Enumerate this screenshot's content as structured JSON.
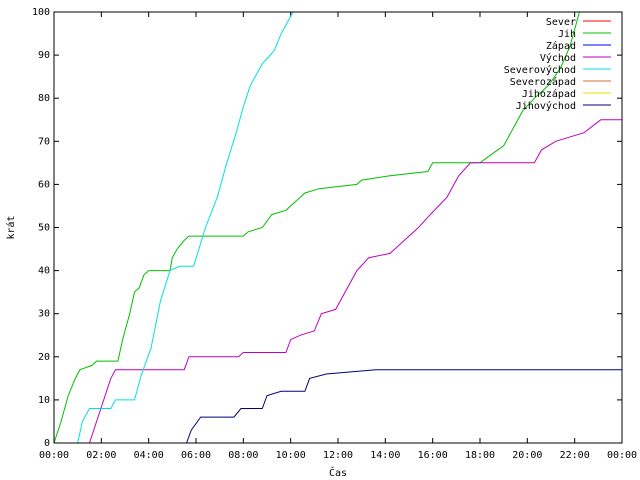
{
  "chart_data": {
    "type": "line",
    "title": "",
    "xlabel": "Čas",
    "ylabel": "krát",
    "xlim": [
      0,
      24
    ],
    "ylim": [
      0,
      100
    ],
    "x_tick_labels": [
      "00:00",
      "02:00",
      "04:00",
      "06:00",
      "08:00",
      "10:00",
      "12:00",
      "14:00",
      "16:00",
      "18:00",
      "20:00",
      "22:00",
      "00:00"
    ],
    "y_tick_labels": [
      "0",
      "10",
      "20",
      "30",
      "40",
      "50",
      "60",
      "70",
      "80",
      "90",
      "100"
    ],
    "grid": false,
    "legend_position": "top-right",
    "series": [
      {
        "name": "Sever",
        "color": "#ff0000",
        "points": []
      },
      {
        "name": "Jih",
        "color": "#00c000",
        "points": [
          [
            0.0,
            0
          ],
          [
            0.3,
            5
          ],
          [
            0.6,
            11
          ],
          [
            0.9,
            15
          ],
          [
            1.1,
            17
          ],
          [
            1.6,
            18
          ],
          [
            1.8,
            19
          ],
          [
            2.7,
            19
          ],
          [
            2.9,
            24
          ],
          [
            3.2,
            30
          ],
          [
            3.4,
            35
          ],
          [
            3.6,
            36
          ],
          [
            3.8,
            39
          ],
          [
            4.0,
            40
          ],
          [
            4.9,
            40
          ],
          [
            5.0,
            43
          ],
          [
            5.2,
            45
          ],
          [
            5.5,
            47
          ],
          [
            5.7,
            48
          ],
          [
            8.0,
            48
          ],
          [
            8.2,
            49
          ],
          [
            8.8,
            50
          ],
          [
            9.2,
            53
          ],
          [
            9.8,
            54
          ],
          [
            10.2,
            56
          ],
          [
            10.6,
            58
          ],
          [
            11.2,
            59
          ],
          [
            12.8,
            60
          ],
          [
            13.0,
            61
          ],
          [
            14.2,
            62
          ],
          [
            15.8,
            63
          ],
          [
            16.0,
            65
          ],
          [
            18.0,
            65
          ],
          [
            18.5,
            67
          ],
          [
            19.0,
            69
          ],
          [
            19.4,
            73
          ],
          [
            19.8,
            77
          ],
          [
            20.3,
            80
          ],
          [
            20.9,
            83
          ],
          [
            21.4,
            87
          ],
          [
            21.8,
            92
          ],
          [
            22.0,
            96
          ],
          [
            22.2,
            100
          ]
        ]
      },
      {
        "name": "Západ",
        "color": "#0000ff",
        "points": []
      },
      {
        "name": "Východ",
        "color": "#c000c0",
        "points": [
          [
            1.5,
            0
          ],
          [
            1.8,
            5
          ],
          [
            2.1,
            10
          ],
          [
            2.4,
            15
          ],
          [
            2.6,
            17
          ],
          [
            5.5,
            17
          ],
          [
            5.7,
            20
          ],
          [
            7.8,
            20
          ],
          [
            8.0,
            21
          ],
          [
            9.8,
            21
          ],
          [
            10.0,
            24
          ],
          [
            10.4,
            25
          ],
          [
            11.0,
            26
          ],
          [
            11.3,
            30
          ],
          [
            11.9,
            31
          ],
          [
            12.3,
            35
          ],
          [
            12.8,
            40
          ],
          [
            13.3,
            43
          ],
          [
            14.2,
            44
          ],
          [
            14.6,
            46
          ],
          [
            15.4,
            50
          ],
          [
            15.9,
            53
          ],
          [
            16.6,
            57
          ],
          [
            17.1,
            62
          ],
          [
            17.6,
            65
          ],
          [
            20.3,
            65
          ],
          [
            20.6,
            68
          ],
          [
            21.2,
            70
          ],
          [
            22.4,
            72
          ],
          [
            23.1,
            75
          ],
          [
            24.0,
            75
          ]
        ]
      },
      {
        "name": "Severovýchod",
        "color": "#00e0e0",
        "points": [
          [
            1.0,
            0
          ],
          [
            1.2,
            5
          ],
          [
            1.5,
            8
          ],
          [
            2.4,
            8
          ],
          [
            2.6,
            10
          ],
          [
            3.4,
            10
          ],
          [
            3.7,
            16
          ],
          [
            4.1,
            22
          ],
          [
            4.5,
            33
          ],
          [
            4.9,
            40
          ],
          [
            5.3,
            41
          ],
          [
            5.9,
            41
          ],
          [
            6.4,
            50
          ],
          [
            6.9,
            57
          ],
          [
            7.3,
            65
          ],
          [
            7.7,
            72
          ],
          [
            8.0,
            78
          ],
          [
            8.3,
            83
          ],
          [
            8.8,
            88
          ],
          [
            9.3,
            91
          ],
          [
            9.6,
            95
          ],
          [
            9.9,
            98
          ],
          [
            10.1,
            100
          ]
        ]
      },
      {
        "name": "Severozápad",
        "color": "#d07030",
        "points": []
      },
      {
        "name": "Jihozápad",
        "color": "#e0e000",
        "points": []
      },
      {
        "name": "Jihovýchod",
        "color": "#000080",
        "points": [
          [
            5.6,
            0
          ],
          [
            5.8,
            3
          ],
          [
            6.2,
            6
          ],
          [
            7.6,
            6
          ],
          [
            7.9,
            8
          ],
          [
            8.8,
            8
          ],
          [
            9.0,
            11
          ],
          [
            9.6,
            12
          ],
          [
            10.6,
            12
          ],
          [
            10.8,
            15
          ],
          [
            11.5,
            16
          ],
          [
            13.6,
            17
          ],
          [
            24.0,
            17
          ]
        ]
      }
    ]
  }
}
